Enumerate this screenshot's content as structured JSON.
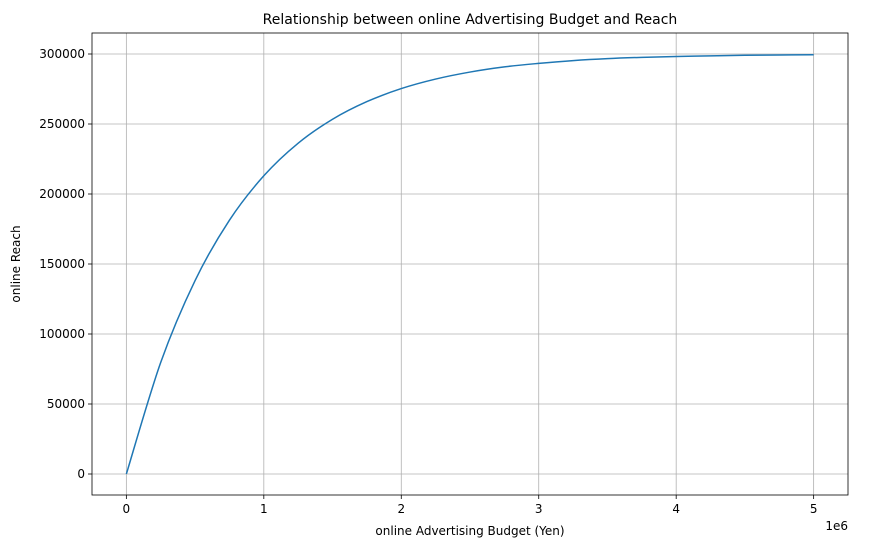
{
  "chart_data": {
    "type": "line",
    "title": "Relationship between online Advertising Budget and Reach",
    "xlabel": "online Advertising Budget (Yen)",
    "ylabel": "online Reach",
    "x_offset_label": "1e6",
    "xlim": [
      -250000,
      5250000
    ],
    "ylim": [
      -15000,
      315000
    ],
    "xticks": [
      0,
      1000000,
      2000000,
      3000000,
      4000000,
      5000000
    ],
    "xtick_labels": [
      "0",
      "1",
      "2",
      "3",
      "4",
      "5"
    ],
    "yticks": [
      0,
      50000,
      100000,
      150000,
      200000,
      250000,
      300000
    ],
    "ytick_labels": [
      "0",
      "50000",
      "100000",
      "150000",
      "200000",
      "250000",
      "300000"
    ],
    "grid": true,
    "series": [
      {
        "color": "#1f77b4",
        "x": [
          0,
          250000,
          500000,
          750000,
          1000000,
          1250000,
          1500000,
          1750000,
          2000000,
          2250000,
          2500000,
          2750000,
          3000000,
          3250000,
          3500000,
          3750000,
          4000000,
          4250000,
          4500000,
          4750000,
          5000000
        ],
        "y": [
          0,
          79700,
          138200,
          181300,
          213000,
          236300,
          253400,
          266000,
          275300,
          282100,
          287100,
          290800,
          293300,
          295300,
          296700,
          297600,
          298200,
          298700,
          299100,
          299300,
          299500
        ]
      }
    ]
  }
}
